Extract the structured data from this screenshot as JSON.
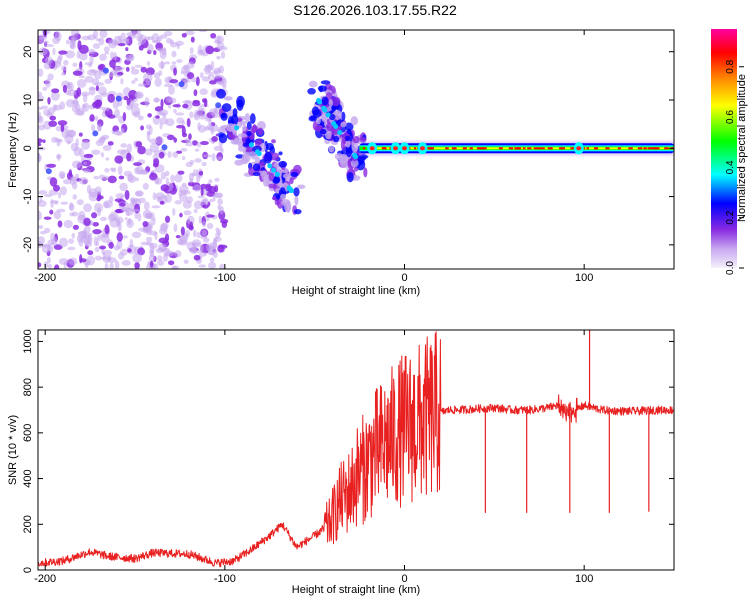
{
  "title": "S126.2026.103.17.55.R22",
  "chart_data": [
    {
      "type": "heatmap",
      "xlabel": "Height of straight line (km)",
      "ylabel": "Frequency (Hz)",
      "xlim": [
        -204,
        150
      ],
      "ylim": [
        -25,
        24.5
      ],
      "xticks": [
        -200,
        -100,
        0,
        100
      ],
      "yticks": [
        -20,
        -10,
        0,
        10,
        20
      ],
      "colorbar": {
        "label": "Normalized spectral amplitude",
        "range": [
          0.0,
          0.95
        ],
        "ticks": [
          "0.0",
          "0.2",
          "0.4",
          "0.6",
          "0.8"
        ],
        "colormap": [
          "#e8e0f8",
          "#8a2be2",
          "#0000ff",
          "#00ffff",
          "#00ff00",
          "#ffff00",
          "#ff8000",
          "#ff0000",
          "#ff00aa"
        ]
      },
      "features": [
        {
          "name": "diffuse-noise",
          "x_range": [
            -204,
            -100
          ],
          "y_range": [
            -25,
            24.5
          ],
          "amplitude": 0.1
        },
        {
          "name": "streak-1",
          "from": [
            -100,
            7
          ],
          "to": [
            -60,
            -10
          ],
          "amplitude": 0.25
        },
        {
          "name": "streak-2",
          "from": [
            -48,
            10
          ],
          "to": [
            -25,
            -3
          ],
          "amplitude": 0.25
        },
        {
          "name": "carrier-line",
          "x_range": [
            -25,
            150
          ],
          "frequency": 0,
          "amplitude": 0.9
        }
      ]
    },
    {
      "type": "line",
      "xlabel": "Height of straight line (km)",
      "ylabel": "SNR (10 * v/v)",
      "xlim": [
        -204,
        150
      ],
      "ylim": [
        0,
        1050
      ],
      "xticks": [
        -200,
        -100,
        0,
        100
      ],
      "yticks": [
        0,
        200,
        400,
        600,
        800,
        1000
      ],
      "color": "#e82020",
      "series": [
        {
          "name": "SNR",
          "x": [
            -204,
            -190,
            -175,
            -165,
            -150,
            -140,
            -120,
            -105,
            -95,
            -85,
            -75,
            -68,
            -60,
            -50,
            -42,
            -36,
            -30,
            -26,
            -22,
            -18,
            -14,
            -10,
            -5,
            0,
            5,
            10,
            15,
            20,
            25,
            30,
            40,
            50,
            60,
            70,
            80,
            85,
            90,
            95,
            100,
            110,
            120,
            130,
            140,
            150
          ],
          "y": [
            30,
            40,
            80,
            60,
            50,
            75,
            70,
            30,
            40,
            90,
            150,
            200,
            100,
            150,
            200,
            300,
            350,
            420,
            450,
            500,
            530,
            560,
            590,
            620,
            630,
            650,
            670,
            690,
            700,
            700,
            705,
            710,
            700,
            700,
            710,
            720,
            680,
            700,
            720,
            700,
            695,
            695,
            700,
            700
          ]
        }
      ],
      "spikes": [
        {
          "x": 45,
          "y": 250
        },
        {
          "x": 68,
          "y": 250
        },
        {
          "x": 92,
          "y": 250
        },
        {
          "x": 103,
          "y": 1050
        },
        {
          "x": 114,
          "y": 250
        },
        {
          "x": 136,
          "y": 255
        }
      ]
    }
  ]
}
